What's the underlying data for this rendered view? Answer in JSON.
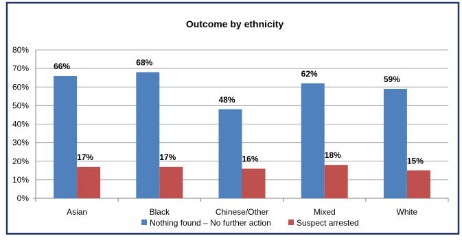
{
  "chart_data": {
    "type": "bar",
    "title": "Outcome by ethnicity",
    "categories": [
      "Asian",
      "Black",
      "Chinese/Other",
      "Mixed",
      "White"
    ],
    "series": [
      {
        "name": "Nothing found – No further action",
        "values": [
          66,
          68,
          48,
          62,
          59
        ],
        "labels": [
          "66%",
          "68%",
          "48%",
          "62%",
          "59%"
        ],
        "color": "#4f81bd"
      },
      {
        "name": "Suspect arrested",
        "values": [
          17,
          17,
          16,
          18,
          15
        ],
        "labels": [
          "17%",
          "17%",
          "16%",
          "18%",
          "15%"
        ],
        "color": "#c0504d"
      }
    ],
    "ylim": [
      0,
      80
    ],
    "yticks": [
      0,
      10,
      20,
      30,
      40,
      50,
      60,
      70,
      80
    ],
    "ytick_labels": [
      "0%",
      "10%",
      "20%",
      "30%",
      "40%",
      "50%",
      "60%",
      "70%",
      "80%"
    ],
    "grid": true,
    "legend_position": "bottom",
    "frame_color": "#1f3864"
  }
}
